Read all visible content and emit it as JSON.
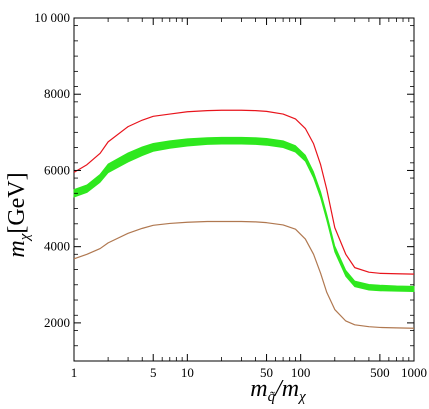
{
  "chart_data": {
    "type": "line",
    "title": "",
    "xlabel": {
      "base": "m",
      "sub": "q̃",
      "mid": "/m",
      "sub2": "χ"
    },
    "ylabel": {
      "base": "m",
      "sub": "χ",
      "unit": "[GeV]"
    },
    "xscale": "log",
    "xlim": [
      1,
      1000
    ],
    "ylim": [
      1000,
      10000
    ],
    "grid": false,
    "legend": "none",
    "x_ticks": [
      {
        "value": 1,
        "label": "1"
      },
      {
        "value": 5,
        "label": "5"
      },
      {
        "value": 10,
        "label": "10"
      },
      {
        "value": 50,
        "label": "50"
      },
      {
        "value": 100,
        "label": "100"
      },
      {
        "value": 500,
        "label": "500"
      },
      {
        "value": 1000,
        "label": "1000"
      }
    ],
    "x_minor_ticks": [
      2,
      3,
      4,
      6,
      7,
      8,
      9,
      20,
      30,
      40,
      60,
      70,
      80,
      90,
      200,
      300,
      400,
      600,
      700,
      800,
      900
    ],
    "y_ticks": [
      {
        "value": 2000,
        "label": "2000"
      },
      {
        "value": 4000,
        "label": "4000"
      },
      {
        "value": 6000,
        "label": "6000"
      },
      {
        "value": 8000,
        "label": "8000"
      },
      {
        "value": 10000,
        "label": "10 000"
      }
    ],
    "y_minor_step": 400,
    "series": [
      {
        "color": "#e8141c",
        "style": "line",
        "x": [
          1,
          1.3,
          1.7,
          2,
          3,
          4,
          5,
          7,
          10,
          15,
          20,
          30,
          40,
          50,
          70,
          90,
          110,
          130,
          150,
          170,
          200,
          250,
          300,
          400,
          500,
          700,
          1000
        ],
        "y": [
          5950,
          6150,
          6450,
          6750,
          7150,
          7320,
          7420,
          7480,
          7540,
          7570,
          7580,
          7580,
          7570,
          7550,
          7480,
          7350,
          7100,
          6700,
          6150,
          5500,
          4500,
          3800,
          3450,
          3330,
          3300,
          3290,
          3280
        ]
      },
      {
        "color": "#2ee81e",
        "style": "band",
        "x": [
          1,
          1.3,
          1.7,
          2,
          3,
          4,
          5,
          7,
          10,
          15,
          20,
          30,
          40,
          50,
          70,
          90,
          110,
          130,
          150,
          170,
          200,
          250,
          300,
          400,
          500,
          700,
          1000
        ],
        "upper": [
          5500,
          5620,
          5900,
          6170,
          6460,
          6620,
          6710,
          6780,
          6830,
          6860,
          6870,
          6870,
          6860,
          6840,
          6780,
          6650,
          6400,
          5960,
          5440,
          4850,
          4020,
          3380,
          3100,
          3010,
          2990,
          2970,
          2960
        ],
        "lower": [
          5300,
          5420,
          5690,
          5940,
          6220,
          6390,
          6500,
          6580,
          6640,
          6680,
          6690,
          6690,
          6680,
          6660,
          6600,
          6480,
          6240,
          5800,
          5280,
          4690,
          3860,
          3220,
          2950,
          2860,
          2840,
          2830,
          2820
        ]
      },
      {
        "color": "#b07850",
        "style": "line",
        "x": [
          1,
          1.3,
          1.7,
          2,
          3,
          4,
          5,
          7,
          10,
          15,
          20,
          30,
          40,
          50,
          70,
          90,
          110,
          130,
          150,
          170,
          200,
          250,
          300,
          400,
          500,
          700,
          1000
        ],
        "y": [
          3680,
          3800,
          3950,
          4100,
          4350,
          4480,
          4560,
          4610,
          4640,
          4660,
          4660,
          4660,
          4650,
          4630,
          4570,
          4460,
          4200,
          3800,
          3300,
          2800,
          2350,
          2050,
          1950,
          1900,
          1880,
          1870,
          1860
        ]
      }
    ]
  }
}
